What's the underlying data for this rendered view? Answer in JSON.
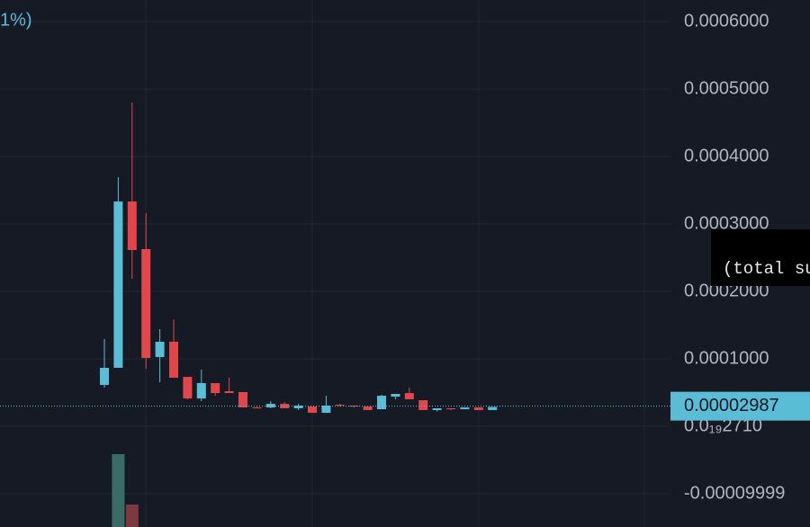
{
  "chart_data": {
    "type": "candlestick",
    "legend_fragment": "1%)",
    "tooltip": "(total su",
    "up_color": "#5bbcd6",
    "down_color": "#e0474c",
    "volume_up_color": "#3a6b65",
    "volume_down_color": "#7c3a40",
    "open": [
      6.13e-05,
      8.67e-05,
      0.0003333,
      0.0002627,
      0.0001027,
      0.0001253,
      7.33e-05,
      4.13e-05,
      6.4e-05,
      5.2e-05,
      5.07e-05,
      2.8e-05,
      2.8e-05,
      3.33e-05,
      2.67e-05,
      2.93e-05,
      2e-05,
      3.2e-05,
      3.07e-05,
      2.93e-05,
      2.53e-05,
      4.4e-05,
      4.93e-05,
      3.87e-05,
      2.4e-05,
      2.67e-05,
      2.53e-05,
      2.8e-05,
      2.4e-05
    ],
    "high": [
      0.0001293,
      0.0003693,
      0.00048,
      0.000316,
      0.000144,
      0.0001587,
      7.33e-05,
      8.4e-05,
      6.4e-05,
      7.2e-05,
      5.07e-05,
      2.87e-05,
      3.73e-05,
      3.6e-05,
      3.33e-05,
      2.93e-05,
      4.53e-05,
      3.33e-05,
      3.07e-05,
      2.93e-05,
      4.67e-05,
      4.8e-05,
      5.73e-05,
      3.87e-05,
      2.67e-05,
      2.67e-05,
      2.8e-05,
      2.8e-05,
      2.87e-05
    ],
    "low": [
      5.73e-05,
      8.67e-05,
      0.0002187,
      8.53e-05,
      6.53e-05,
      7.2e-05,
      4e-05,
      3.73e-05,
      4.53e-05,
      4.93e-05,
      2.8e-05,
      2.67e-05,
      2.67e-05,
      2.67e-05,
      2.4e-05,
      2e-05,
      2e-05,
      2.9e-05,
      2.8e-05,
      2.4e-05,
      2.53e-05,
      4e-05,
      4e-05,
      2.4e-05,
      2.2e-05,
      2.4e-05,
      2.53e-05,
      2.4e-05,
      2.4e-05
    ],
    "close": [
      8.67e-05,
      0.0003333,
      0.0002613,
      0.0001013,
      0.0001253,
      7.2e-05,
      4.13e-05,
      6.4e-05,
      4.93e-05,
      4.93e-05,
      2.8e-05,
      2.73e-05,
      3.33e-05,
      2.67e-05,
      3.07e-05,
      2e-05,
      3.07e-05,
      3.07e-05,
      2.93e-05,
      2.4e-05,
      4.53e-05,
      4.8e-05,
      4e-05,
      2.4e-05,
      2.67e-05,
      2.53e-05,
      2.8e-05,
      2.4e-05,
      2.87e-05
    ],
    "volume": [
      null,
      81,
      25,
      null,
      null,
      null,
      null,
      null,
      null,
      null,
      null,
      null,
      null,
      null,
      null,
      null,
      null,
      null,
      null,
      null,
      null,
      null,
      null,
      null,
      null,
      null,
      null,
      null,
      null
    ],
    "volume_lim": [
      0,
      100
    ],
    "last_price": 2.987e-05,
    "ylim": [
      -0.0001493,
      0.000632
    ],
    "yticks": [
      {
        "value": 0.0006,
        "label": "0.0006000"
      },
      {
        "value": 0.0005,
        "label": "0.0005000"
      },
      {
        "value": 0.0004,
        "label": "0.0004000"
      },
      {
        "value": 0.0003,
        "label": "0.0003000"
      },
      {
        "value": 0.0002,
        "label": "0.0002000"
      },
      {
        "value": 0.0001,
        "label": "0.0001000"
      },
      {
        "value": 2.71e-20,
        "label": "0.0₁₉2710"
      },
      -9.999e-05
    ],
    "grid": true
  }
}
